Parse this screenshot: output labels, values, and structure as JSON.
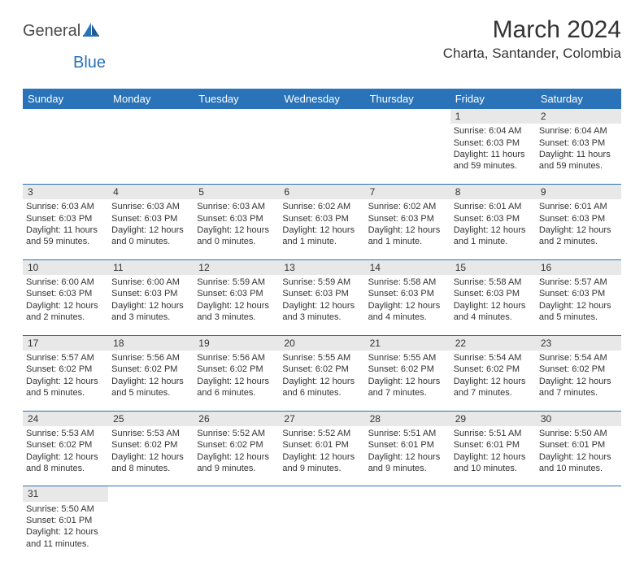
{
  "header": {
    "logo_general": "General",
    "logo_blue": "Blue",
    "month_title": "March 2024",
    "location": "Charta, Santander, Colombia"
  },
  "colors": {
    "header_bg": "#2a73b8",
    "header_text": "#ffffff",
    "daynum_bg": "#e8e8e8",
    "row_border": "#2a73b8",
    "text": "#333333",
    "logo_gray": "#4a4a4a",
    "logo_blue": "#2a73b8"
  },
  "weekdays": [
    "Sunday",
    "Monday",
    "Tuesday",
    "Wednesday",
    "Thursday",
    "Friday",
    "Saturday"
  ],
  "weeks": [
    {
      "nums": [
        "",
        "",
        "",
        "",
        "",
        "1",
        "2"
      ],
      "cells": [
        {
          "empty": true
        },
        {
          "empty": true
        },
        {
          "empty": true
        },
        {
          "empty": true
        },
        {
          "empty": true
        },
        {
          "sunrise": "Sunrise: 6:04 AM",
          "sunset": "Sunset: 6:03 PM",
          "daylight": "Daylight: 11 hours and 59 minutes."
        },
        {
          "sunrise": "Sunrise: 6:04 AM",
          "sunset": "Sunset: 6:03 PM",
          "daylight": "Daylight: 11 hours and 59 minutes."
        }
      ]
    },
    {
      "nums": [
        "3",
        "4",
        "5",
        "6",
        "7",
        "8",
        "9"
      ],
      "cells": [
        {
          "sunrise": "Sunrise: 6:03 AM",
          "sunset": "Sunset: 6:03 PM",
          "daylight": "Daylight: 11 hours and 59 minutes."
        },
        {
          "sunrise": "Sunrise: 6:03 AM",
          "sunset": "Sunset: 6:03 PM",
          "daylight": "Daylight: 12 hours and 0 minutes."
        },
        {
          "sunrise": "Sunrise: 6:03 AM",
          "sunset": "Sunset: 6:03 PM",
          "daylight": "Daylight: 12 hours and 0 minutes."
        },
        {
          "sunrise": "Sunrise: 6:02 AM",
          "sunset": "Sunset: 6:03 PM",
          "daylight": "Daylight: 12 hours and 1 minute."
        },
        {
          "sunrise": "Sunrise: 6:02 AM",
          "sunset": "Sunset: 6:03 PM",
          "daylight": "Daylight: 12 hours and 1 minute."
        },
        {
          "sunrise": "Sunrise: 6:01 AM",
          "sunset": "Sunset: 6:03 PM",
          "daylight": "Daylight: 12 hours and 1 minute."
        },
        {
          "sunrise": "Sunrise: 6:01 AM",
          "sunset": "Sunset: 6:03 PM",
          "daylight": "Daylight: 12 hours and 2 minutes."
        }
      ]
    },
    {
      "nums": [
        "10",
        "11",
        "12",
        "13",
        "14",
        "15",
        "16"
      ],
      "cells": [
        {
          "sunrise": "Sunrise: 6:00 AM",
          "sunset": "Sunset: 6:03 PM",
          "daylight": "Daylight: 12 hours and 2 minutes."
        },
        {
          "sunrise": "Sunrise: 6:00 AM",
          "sunset": "Sunset: 6:03 PM",
          "daylight": "Daylight: 12 hours and 3 minutes."
        },
        {
          "sunrise": "Sunrise: 5:59 AM",
          "sunset": "Sunset: 6:03 PM",
          "daylight": "Daylight: 12 hours and 3 minutes."
        },
        {
          "sunrise": "Sunrise: 5:59 AM",
          "sunset": "Sunset: 6:03 PM",
          "daylight": "Daylight: 12 hours and 3 minutes."
        },
        {
          "sunrise": "Sunrise: 5:58 AM",
          "sunset": "Sunset: 6:03 PM",
          "daylight": "Daylight: 12 hours and 4 minutes."
        },
        {
          "sunrise": "Sunrise: 5:58 AM",
          "sunset": "Sunset: 6:03 PM",
          "daylight": "Daylight: 12 hours and 4 minutes."
        },
        {
          "sunrise": "Sunrise: 5:57 AM",
          "sunset": "Sunset: 6:03 PM",
          "daylight": "Daylight: 12 hours and 5 minutes."
        }
      ]
    },
    {
      "nums": [
        "17",
        "18",
        "19",
        "20",
        "21",
        "22",
        "23"
      ],
      "cells": [
        {
          "sunrise": "Sunrise: 5:57 AM",
          "sunset": "Sunset: 6:02 PM",
          "daylight": "Daylight: 12 hours and 5 minutes."
        },
        {
          "sunrise": "Sunrise: 5:56 AM",
          "sunset": "Sunset: 6:02 PM",
          "daylight": "Daylight: 12 hours and 5 minutes."
        },
        {
          "sunrise": "Sunrise: 5:56 AM",
          "sunset": "Sunset: 6:02 PM",
          "daylight": "Daylight: 12 hours and 6 minutes."
        },
        {
          "sunrise": "Sunrise: 5:55 AM",
          "sunset": "Sunset: 6:02 PM",
          "daylight": "Daylight: 12 hours and 6 minutes."
        },
        {
          "sunrise": "Sunrise: 5:55 AM",
          "sunset": "Sunset: 6:02 PM",
          "daylight": "Daylight: 12 hours and 7 minutes."
        },
        {
          "sunrise": "Sunrise: 5:54 AM",
          "sunset": "Sunset: 6:02 PM",
          "daylight": "Daylight: 12 hours and 7 minutes."
        },
        {
          "sunrise": "Sunrise: 5:54 AM",
          "sunset": "Sunset: 6:02 PM",
          "daylight": "Daylight: 12 hours and 7 minutes."
        }
      ]
    },
    {
      "nums": [
        "24",
        "25",
        "26",
        "27",
        "28",
        "29",
        "30"
      ],
      "cells": [
        {
          "sunrise": "Sunrise: 5:53 AM",
          "sunset": "Sunset: 6:02 PM",
          "daylight": "Daylight: 12 hours and 8 minutes."
        },
        {
          "sunrise": "Sunrise: 5:53 AM",
          "sunset": "Sunset: 6:02 PM",
          "daylight": "Daylight: 12 hours and 8 minutes."
        },
        {
          "sunrise": "Sunrise: 5:52 AM",
          "sunset": "Sunset: 6:02 PM",
          "daylight": "Daylight: 12 hours and 9 minutes."
        },
        {
          "sunrise": "Sunrise: 5:52 AM",
          "sunset": "Sunset: 6:01 PM",
          "daylight": "Daylight: 12 hours and 9 minutes."
        },
        {
          "sunrise": "Sunrise: 5:51 AM",
          "sunset": "Sunset: 6:01 PM",
          "daylight": "Daylight: 12 hours and 9 minutes."
        },
        {
          "sunrise": "Sunrise: 5:51 AM",
          "sunset": "Sunset: 6:01 PM",
          "daylight": "Daylight: 12 hours and 10 minutes."
        },
        {
          "sunrise": "Sunrise: 5:50 AM",
          "sunset": "Sunset: 6:01 PM",
          "daylight": "Daylight: 12 hours and 10 minutes."
        }
      ]
    },
    {
      "nums": [
        "31",
        "",
        "",
        "",
        "",
        "",
        ""
      ],
      "cells": [
        {
          "sunrise": "Sunrise: 5:50 AM",
          "sunset": "Sunset: 6:01 PM",
          "daylight": "Daylight: 12 hours and 11 minutes."
        },
        {
          "empty": true
        },
        {
          "empty": true
        },
        {
          "empty": true
        },
        {
          "empty": true
        },
        {
          "empty": true
        },
        {
          "empty": true
        }
      ]
    }
  ]
}
